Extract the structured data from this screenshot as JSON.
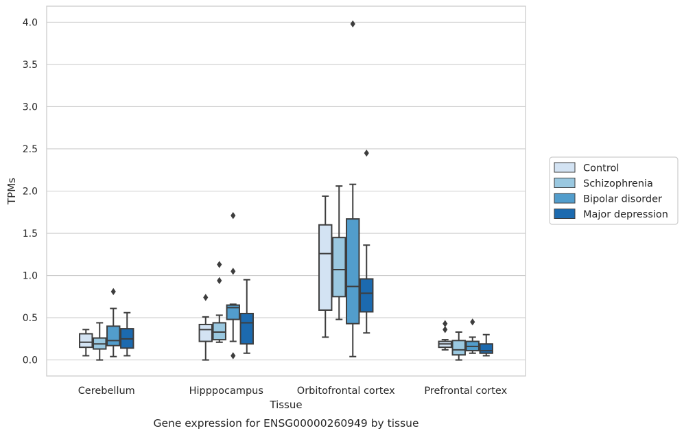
{
  "chart_data": {
    "type": "box",
    "title": "Gene expression for ENSG00000260949 by tissue",
    "xlabel": "Tissue",
    "ylabel": "TPMs",
    "ylim": [
      -0.19,
      4.19
    ],
    "yticks": [
      0.0,
      0.5,
      1.0,
      1.5,
      2.0,
      2.5,
      3.0,
      3.5,
      4.0
    ],
    "ytick_labels": [
      "0.0",
      "0.5",
      "1.0",
      "1.5",
      "2.0",
      "2.5",
      "3.0",
      "3.5",
      "4.0"
    ],
    "grid": true,
    "legend_position": "right",
    "categories": [
      "Cerebellum",
      "Hipppocampus",
      "Orbitofrontal cortex",
      "Prefrontal cortex"
    ],
    "series": [
      {
        "name": "Control",
        "color": "#d3e3f3",
        "boxes": [
          {
            "whislo": 0.05,
            "q1": 0.15,
            "med": 0.21,
            "q3": 0.31,
            "whishi": 0.36,
            "fliers": []
          },
          {
            "whislo": 0.0,
            "q1": 0.22,
            "med": 0.36,
            "q3": 0.42,
            "whishi": 0.51,
            "fliers": [
              0.74
            ]
          },
          {
            "whislo": 0.27,
            "q1": 0.59,
            "med": 1.26,
            "q3": 1.6,
            "whishi": 1.94,
            "fliers": []
          },
          {
            "whislo": 0.12,
            "q1": 0.15,
            "med": 0.19,
            "q3": 0.22,
            "whishi": 0.24,
            "fliers": [
              0.36,
              0.43
            ]
          }
        ]
      },
      {
        "name": "Schizophrenia",
        "color": "#9ac8e0",
        "boxes": [
          {
            "whislo": 0.0,
            "q1": 0.13,
            "med": 0.19,
            "q3": 0.26,
            "whishi": 0.44,
            "fliers": []
          },
          {
            "whislo": 0.21,
            "q1": 0.24,
            "med": 0.33,
            "q3": 0.44,
            "whishi": 0.53,
            "fliers": [
              0.94,
              1.13
            ]
          },
          {
            "whislo": 0.48,
            "q1": 0.75,
            "med": 1.07,
            "q3": 1.45,
            "whishi": 2.06,
            "fliers": []
          },
          {
            "whislo": 0.0,
            "q1": 0.06,
            "med": 0.12,
            "q3": 0.23,
            "whishi": 0.33,
            "fliers": []
          }
        ]
      },
      {
        "name": "Bipolar disorder",
        "color": "#529dcc",
        "boxes": [
          {
            "whislo": 0.04,
            "q1": 0.17,
            "med": 0.23,
            "q3": 0.4,
            "whishi": 0.61,
            "fliers": [
              0.81
            ]
          },
          {
            "whislo": 0.22,
            "q1": 0.48,
            "med": 0.62,
            "q3": 0.65,
            "whishi": 0.66,
            "fliers": [
              0.05,
              1.05,
              1.71
            ]
          },
          {
            "whislo": 0.04,
            "q1": 0.43,
            "med": 0.87,
            "q3": 1.67,
            "whishi": 2.08,
            "fliers": [
              3.98
            ]
          },
          {
            "whislo": 0.08,
            "q1": 0.11,
            "med": 0.16,
            "q3": 0.22,
            "whishi": 0.27,
            "fliers": [
              0.45
            ]
          }
        ]
      },
      {
        "name": "Major depression",
        "color": "#1c6aaf",
        "boxes": [
          {
            "whislo": 0.05,
            "q1": 0.14,
            "med": 0.25,
            "q3": 0.37,
            "whishi": 0.56,
            "fliers": []
          },
          {
            "whislo": 0.08,
            "q1": 0.19,
            "med": 0.44,
            "q3": 0.55,
            "whishi": 0.95,
            "fliers": []
          },
          {
            "whislo": 0.32,
            "q1": 0.57,
            "med": 0.79,
            "q3": 0.96,
            "whishi": 1.36,
            "fliers": [
              2.45
            ]
          },
          {
            "whislo": 0.05,
            "q1": 0.08,
            "med": 0.11,
            "q3": 0.19,
            "whishi": 0.3,
            "fliers": []
          }
        ]
      }
    ]
  }
}
